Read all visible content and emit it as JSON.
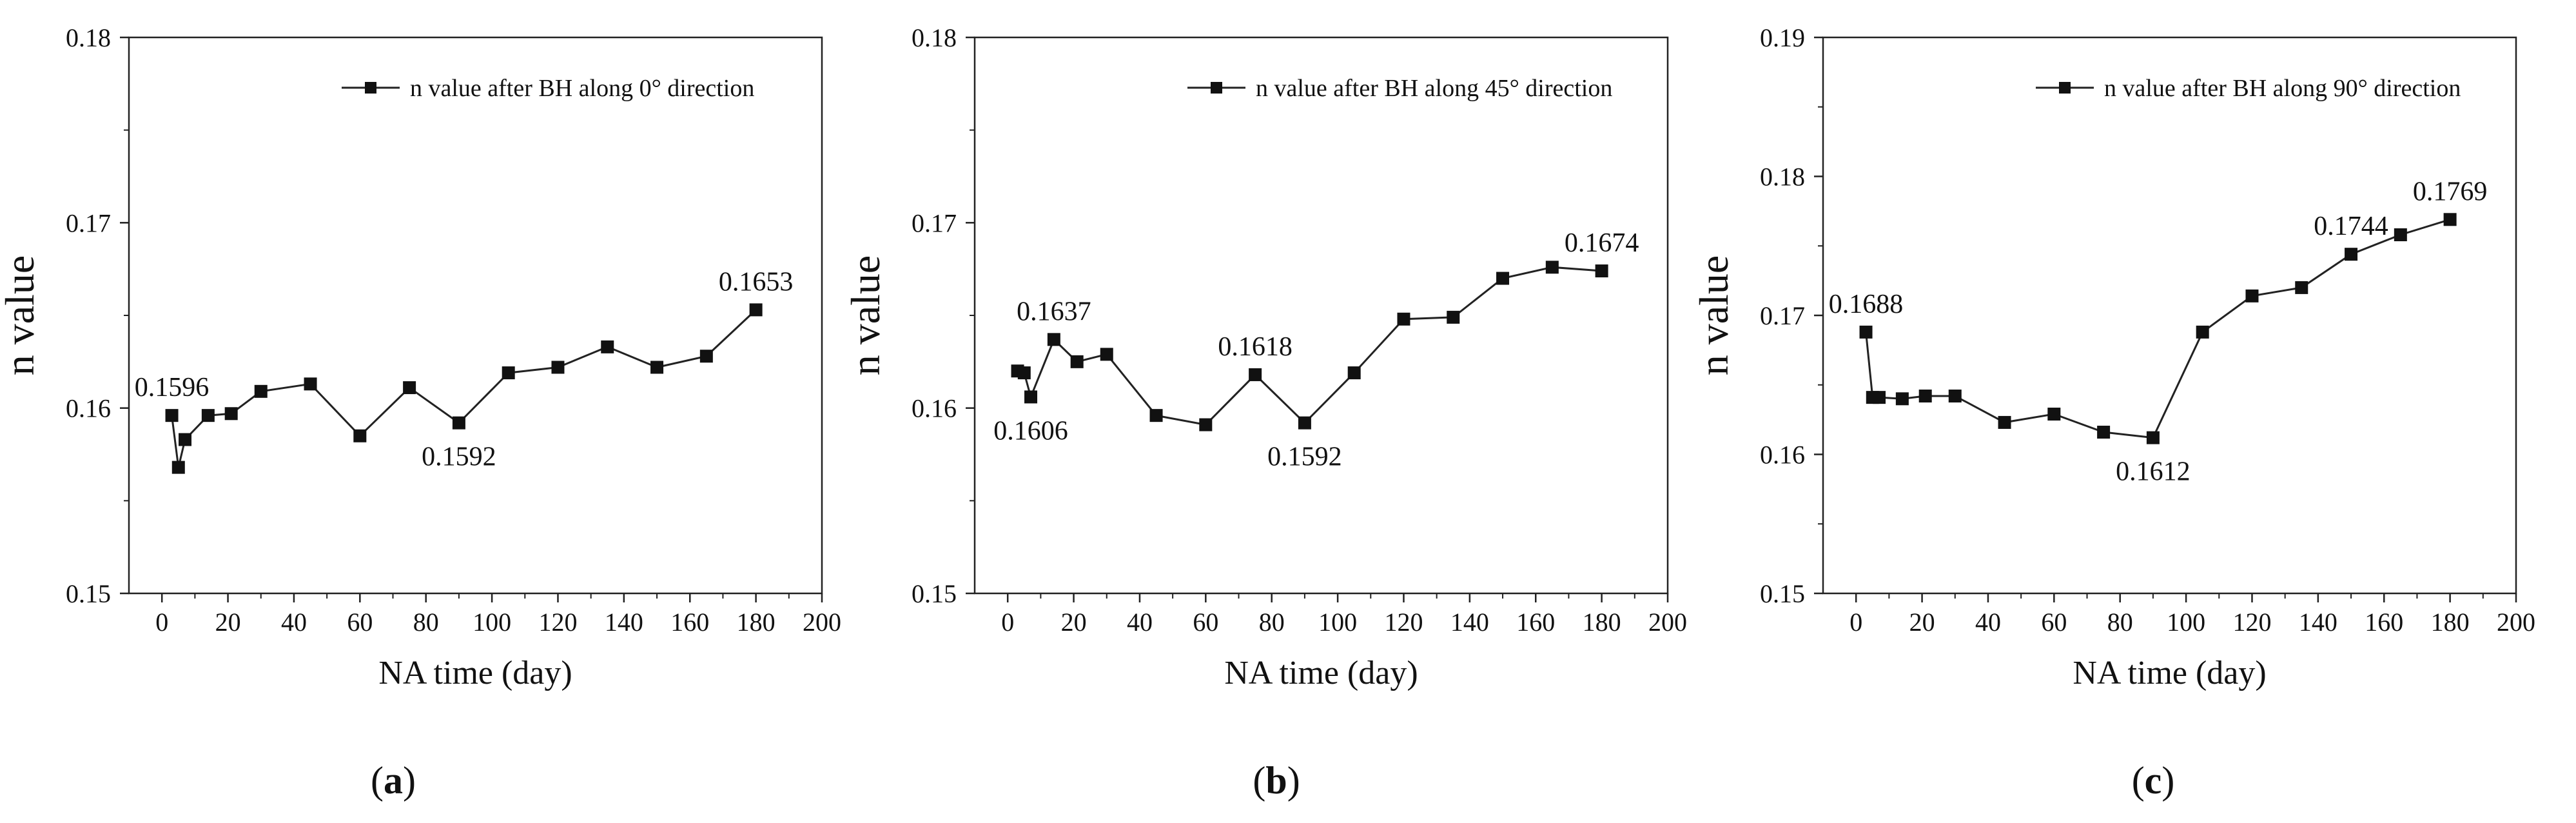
{
  "chart_data": [
    {
      "type": "line",
      "title": "",
      "xlabel": "NA time (day)",
      "ylabel": "n value",
      "xlim": [
        -10,
        200
      ],
      "ylim": [
        0.15,
        0.18
      ],
      "xticks": [
        0,
        20,
        40,
        60,
        80,
        100,
        120,
        140,
        160,
        180,
        200
      ],
      "xtick_labels": [
        "0",
        "20",
        "40",
        "60",
        "80",
        "100",
        "120",
        "140",
        "160",
        "180",
        "200"
      ],
      "yticks": [
        0.15,
        0.16,
        0.17,
        0.18
      ],
      "ytick_labels": [
        "0.15",
        "0.16",
        "0.17",
        "0.18"
      ],
      "legend": "n value after BH along 0° direction",
      "legend_position": "top-right",
      "caption_letter": "a",
      "series": [
        {
          "name": "n value after BH along 0° direction",
          "x": [
            3,
            5,
            7,
            14,
            21,
            30,
            45,
            60,
            75,
            90,
            105,
            120,
            135,
            150,
            165,
            180
          ],
          "y": [
            0.1596,
            0.1568,
            0.1583,
            0.1596,
            0.1597,
            0.1609,
            0.1613,
            0.1585,
            0.1611,
            0.1592,
            0.1619,
            0.1622,
            0.1633,
            0.1622,
            0.1628,
            0.1653
          ]
        }
      ],
      "annotations": [
        {
          "text": "0.1596",
          "x": 3,
          "y": 0.1596,
          "pos": "above"
        },
        {
          "text": "0.1592",
          "x": 90,
          "y": 0.1592,
          "pos": "below"
        },
        {
          "text": "0.1653",
          "x": 180,
          "y": 0.1653,
          "pos": "above"
        }
      ]
    },
    {
      "type": "line",
      "title": "",
      "xlabel": "NA time (day)",
      "ylabel": "n value",
      "xlim": [
        -10,
        200
      ],
      "ylim": [
        0.15,
        0.18
      ],
      "xticks": [
        0,
        20,
        40,
        60,
        80,
        100,
        120,
        140,
        160,
        180,
        200
      ],
      "xtick_labels": [
        "0",
        "20",
        "40",
        "60",
        "80",
        "100",
        "120",
        "140",
        "160",
        "180",
        "200"
      ],
      "yticks": [
        0.15,
        0.16,
        0.17,
        0.18
      ],
      "ytick_labels": [
        "0.15",
        "0.16",
        "0.17",
        "0.18"
      ],
      "legend": "n value after BH along 45° direction",
      "legend_position": "top-right",
      "caption_letter": "b",
      "series": [
        {
          "name": "n value after BH along 45° direction",
          "x": [
            3,
            5,
            7,
            14,
            21,
            30,
            45,
            60,
            75,
            90,
            105,
            120,
            135,
            150,
            165,
            180
          ],
          "y": [
            0.162,
            0.1619,
            0.1606,
            0.1637,
            0.1625,
            0.1629,
            0.1596,
            0.1591,
            0.1618,
            0.1592,
            0.1619,
            0.1648,
            0.1649,
            0.167,
            0.1676,
            0.1674
          ]
        }
      ],
      "annotations": [
        {
          "text": "0.1637",
          "x": 14,
          "y": 0.1637,
          "pos": "above"
        },
        {
          "text": "0.1606",
          "x": 7,
          "y": 0.1606,
          "pos": "below"
        },
        {
          "text": "0.1618",
          "x": 75,
          "y": 0.1618,
          "pos": "above"
        },
        {
          "text": "0.1592",
          "x": 90,
          "y": 0.1592,
          "pos": "below"
        },
        {
          "text": "0.1674",
          "x": 180,
          "y": 0.1674,
          "pos": "above"
        }
      ]
    },
    {
      "type": "line",
      "title": "",
      "xlabel": "NA time (day)",
      "ylabel": "n value",
      "xlim": [
        -10,
        200
      ],
      "ylim": [
        0.15,
        0.19
      ],
      "xticks": [
        0,
        20,
        40,
        60,
        80,
        100,
        120,
        140,
        160,
        180,
        200
      ],
      "xtick_labels": [
        "0",
        "20",
        "40",
        "60",
        "80",
        "100",
        "120",
        "140",
        "160",
        "180",
        "200"
      ],
      "yticks": [
        0.15,
        0.16,
        0.17,
        0.18,
        0.19
      ],
      "ytick_labels": [
        "0.15",
        "0.16",
        "0.17",
        "0.18",
        "0.19"
      ],
      "legend": "n value after BH along 90° direction",
      "legend_position": "top-right",
      "caption_letter": "c",
      "series": [
        {
          "name": "n value after BH along 90° direction",
          "x": [
            3,
            5,
            7,
            14,
            21,
            30,
            45,
            60,
            75,
            90,
            105,
            120,
            135,
            150,
            165,
            180
          ],
          "y": [
            0.1688,
            0.1641,
            0.1641,
            0.164,
            0.1642,
            0.1642,
            0.1623,
            0.1629,
            0.1616,
            0.1612,
            0.1688,
            0.1714,
            0.172,
            0.1744,
            0.1758,
            0.1769
          ]
        }
      ],
      "annotations": [
        {
          "text": "0.1688",
          "x": 3,
          "y": 0.1688,
          "pos": "above"
        },
        {
          "text": "0.1612",
          "x": 90,
          "y": 0.1612,
          "pos": "below"
        },
        {
          "text": "0.1744",
          "x": 150,
          "y": 0.1744,
          "pos": "above"
        },
        {
          "text": "0.1769",
          "x": 180,
          "y": 0.1769,
          "pos": "above"
        }
      ]
    }
  ]
}
